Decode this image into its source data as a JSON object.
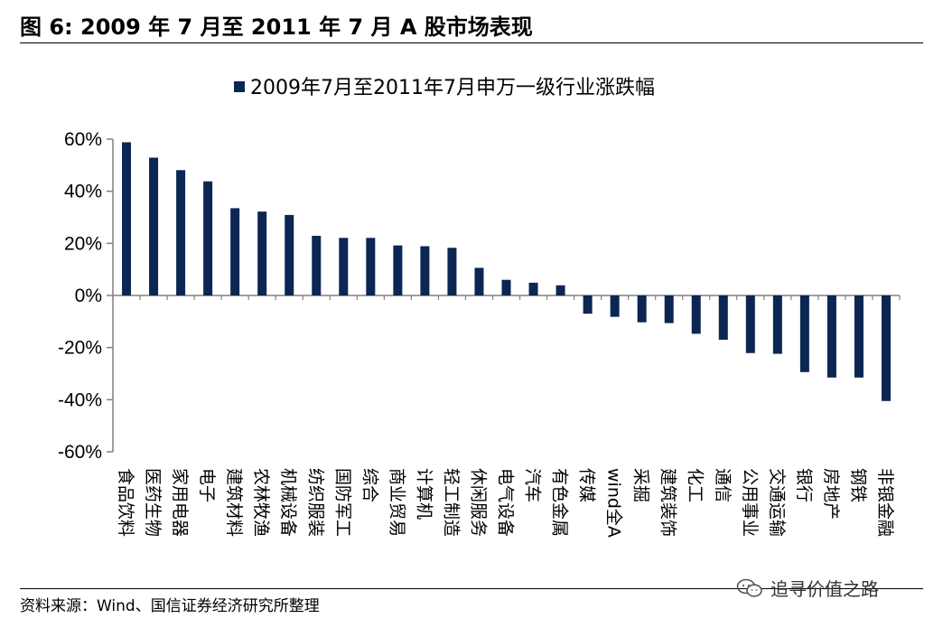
{
  "header": {
    "figure_title": "图 6:  2009 年 7 月至 2011 年 7 月 A 股市场表现"
  },
  "footer": {
    "source": "资料来源：Wind、国信证券经济研究所整理",
    "watermark": "追寻价值之路",
    "watermark_icon": "wechat-icon"
  },
  "colors": {
    "bar": "#0b2653",
    "axis": "#808080",
    "text": "#000000"
  },
  "chart_data": {
    "type": "bar",
    "legend": [
      "2009年7月至2011年7月申万一级行业涨跌幅"
    ],
    "legend_placement": "top-center",
    "grid": false,
    "ylim": [
      -60,
      60
    ],
    "yticks": [
      60,
      40,
      20,
      0,
      -20,
      -40,
      -60
    ],
    "ytick_labels": [
      "60%",
      "40%",
      "20%",
      "0%",
      "-20%",
      "-40%",
      "-60%"
    ],
    "categories": [
      "食品饮料",
      "医药生物",
      "家用电器",
      "电子",
      "建筑材料",
      "农林牧渔",
      "机械设备",
      "纺织服装",
      "国防军工",
      "综合",
      "商业贸易",
      "计算机",
      "轻工制造",
      "休闲服务",
      "电气设备",
      "汽车",
      "有色金属",
      "传媒",
      "wind全A",
      "采掘",
      "建筑装饰",
      "化工",
      "通信",
      "公用事业",
      "交通运输",
      "银行",
      "房地产",
      "钢铁",
      "非银金融"
    ],
    "series": [
      {
        "name": "2009年7月至2011年7月申万一级行业涨跌幅",
        "values": [
          58.8,
          52.9,
          48.1,
          43.8,
          33.5,
          32.2,
          30.9,
          22.9,
          22.1,
          22.1,
          19.2,
          18.9,
          18.3,
          10.6,
          6.0,
          4.9,
          3.9,
          -7.0,
          -8.2,
          -10.3,
          -10.6,
          -14.7,
          -17.0,
          -22.1,
          -22.4,
          -29.4,
          -31.5,
          -31.5,
          -40.5
        ]
      }
    ]
  }
}
